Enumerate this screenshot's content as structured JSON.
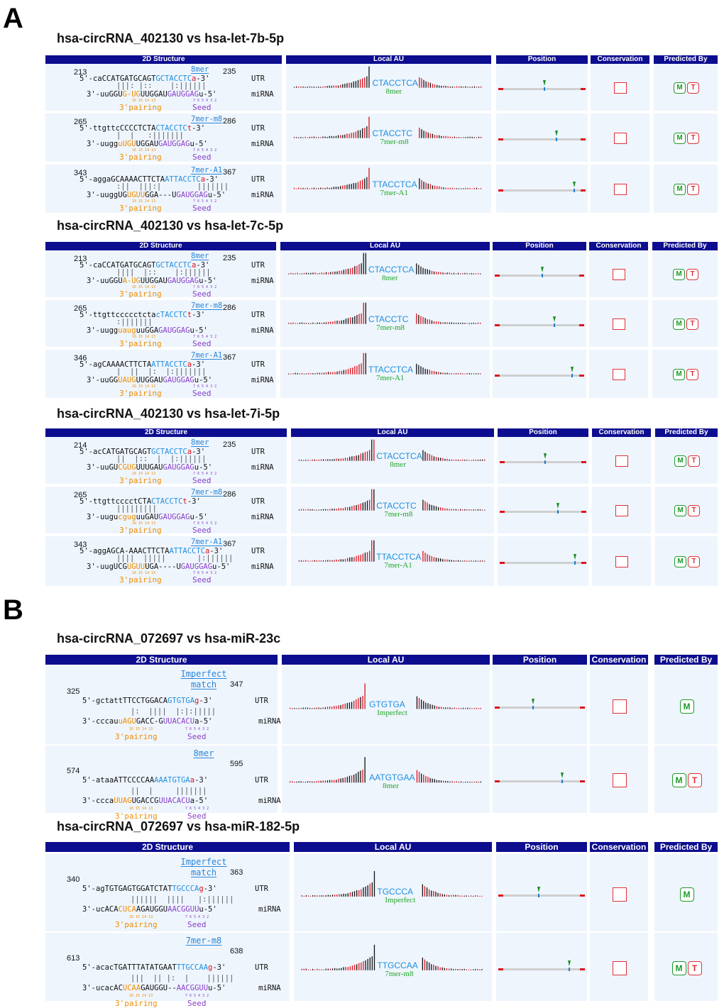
{
  "panels": [
    {
      "letter": "A",
      "blocks": [
        {
          "title": "hsa-circRNA_402130 vs hsa-let-7b-5p",
          "headers": [
            "2D Structure",
            "Local AU",
            "Position",
            "Conservation",
            "Predicted By"
          ],
          "rows": [
            {
              "start": "213",
              "end": "235",
              "site_type": "8mer",
              "utr": "5'-caCCATGATGCAGTGCTACCTCa-3'",
              "pairs": "|||: |::    |:||||||",
              "mirna": "3'-uuGGUG-UGUUGGAUGAUGGAGu-5'",
              "utr_label": "UTR",
              "mirna_label": "miRNA",
              "three_prime_label": "3'pairing",
              "seed_label": "Seed",
              "pos_digits": "16 15 14 13",
              "seed_digits": "7 6 5 4 3 2",
              "au_site": "CTACCTCA",
              "au_type": "8mer",
              "position_frac": 0.52,
              "predicted": [
                "M",
                "T"
              ]
            },
            {
              "start": "265",
              "end": "286",
              "site_type": "7mer-m8",
              "utr": "5'-ttgttcCCCCTCTACTACCTCt-3'",
              "pairs": "|  |   :|||||||",
              "mirna": "3'-uugguUGUUGGAUGAUGGAGu-5'",
              "utr_label": "UTR",
              "mirna_label": "miRNA",
              "three_prime_label": "3'pairing",
              "seed_label": "Seed",
              "pos_digits": "16 15 14 13",
              "seed_digits": "7 6 5 4 3 2",
              "au_site": "CTACCTC",
              "au_type": "7mer-m8",
              "position_frac": 0.66,
              "predicted": [
                "M",
                "T"
              ]
            },
            {
              "start": "343",
              "end": "367",
              "site_type": "7mer-A1",
              "utr": "5'-aggaGCAAAACTTCTAATTACCTCa-3'",
              "pairs": ":||  |||:|        |||||||",
              "mirna": "3'-uuggUGUGUUGGA---UGAUGGAGu-5'",
              "utr_label": "UTR",
              "mirna_label": "miRNA",
              "three_prime_label": "3'pairing",
              "seed_label": "Seed",
              "pos_digits": "16 15 14 13",
              "seed_digits": "7 6 5 4 3 2",
              "au_site": "TTACCTCA",
              "au_type": "7mer-A1",
              "position_frac": 0.86,
              "predicted": [
                "M",
                "T"
              ]
            }
          ]
        },
        {
          "title": "hsa-circRNA_402130 vs hsa-let-7c-5p",
          "headers": [
            "2D Structure",
            "Local AU",
            "Position",
            "Conservation",
            "Predicted By"
          ],
          "rows": [
            {
              "start": "213",
              "end": "235",
              "site_type": "8mer",
              "utr": "5'-caCCATGATGCAGTGCTACCTCa-3'",
              "pairs": "||||  |::    |:||||||",
              "mirna": "3'-uuGGUA-UGUUGGAUGAUGGAGu-5'",
              "utr_label": "UTR",
              "mirna_label": "miRNA",
              "three_prime_label": "3'pairing",
              "seed_label": "Seed",
              "pos_digits": "16 15 14 13",
              "seed_digits": "7 6 5 4 3 2",
              "au_site": "CTACCTCA",
              "au_type": "8mer",
              "position_frac": 0.52,
              "predicted": [
                "M",
                "T"
              ]
            },
            {
              "start": "265",
              "end": "286",
              "site_type": "7mer-m8",
              "utr": "5'-ttgttccccctctacTACCTCt-3'",
              "pairs": ":|||||||",
              "mirna": "3'-uugguauguuGGAGAUGGAGu-5'",
              "utr_label": "UTR",
              "mirna_label": "miRNA",
              "three_prime_label": "3'pairing",
              "seed_label": "Seed",
              "pos_digits": "16 15 14 13",
              "seed_digits": "7 6 5 4 3 2",
              "au_site": "CTACCTC",
              "au_type": "7mer-m8",
              "position_frac": 0.66,
              "predicted": [
                "M",
                "T"
              ]
            },
            {
              "start": "346",
              "end": "367",
              "site_type": "7mer-A1",
              "utr": "5'-agCAAAACTTCTAATTACCTCa-3'",
              "pairs": "|  ||  |:  |:|||||||",
              "mirna": "3'-uuGGUAUGUUGGAUGAUGGAGu-5'",
              "utr_label": "UTR",
              "mirna_label": "miRNA",
              "three_prime_label": "3'pairing",
              "seed_label": "Seed",
              "pos_digits": "16 15 14 13",
              "seed_digits": "7 6 5 4 3 2",
              "au_site": "TTACCTCA",
              "au_type": "7mer-A1",
              "position_frac": 0.86,
              "predicted": [
                "M",
                "T"
              ]
            }
          ]
        },
        {
          "title": "hsa-circRNA_402130 vs hsa-let-7i-5p",
          "headers": [
            "2D Structure",
            "Local AU",
            "Position",
            "Conservation",
            "Predicted By"
          ],
          "rows": [
            {
              "start": "214",
              "end": "235",
              "site_type": "8mer",
              "utr": "5'-acCATGATGCAGTGCTACCTCa-3'",
              "pairs": "||  |::  |  |:||||||",
              "mirna": "3'-uuGUCGUGUUUGAUGAUGGAGu-5'",
              "utr_label": "UTR",
              "mirna_label": "miRNA",
              "three_prime_label": "3'pairing",
              "seed_label": "Seed",
              "pos_digits": "16 15 14 13",
              "seed_digits": "7 6 5 4 3 2",
              "au_site": "CTACCTCA",
              "au_type": "8mer",
              "position_frac": 0.52,
              "predicted": [
                "M",
                "T"
              ]
            },
            {
              "start": "265",
              "end": "286",
              "site_type": "7mer-m8",
              "utr": "5'-ttgttcccctCTACTACCTCt-3'",
              "pairs": "|||||||||",
              "mirna": "3'-uugucguguuGAUGAUGGAGu-5'",
              "utr_label": "UTR",
              "mirna_label": "miRNA",
              "three_prime_label": "3'pairing",
              "seed_label": "Seed",
              "pos_digits": "16 15 14 13",
              "seed_digits": "7 6 5 4 3 2",
              "au_site": "CTACCTC",
              "au_type": "7mer-m8",
              "position_frac": 0.66,
              "predicted": [
                "M",
                "T"
              ]
            },
            {
              "start": "343",
              "end": "367",
              "site_type": "7mer-A1",
              "utr": "5'-aggAGCA-AAACTTCTAATTACCTCa-3'",
              "pairs": "||||  |||||       |:||||||",
              "mirna": "3'-uugUCGUGUUUGA----UGAUGGAGu-5'",
              "utr_label": "UTR",
              "mirna_label": "miRNA",
              "three_prime_label": "3'pairing",
              "seed_label": "Seed",
              "pos_digits": "16 15 14 13",
              "seed_digits": "7 6 5 4 3 2",
              "au_site": "TTACCTCA",
              "au_type": "7mer-A1",
              "position_frac": 0.86,
              "predicted": [
                "M",
                "T"
              ]
            }
          ]
        }
      ]
    },
    {
      "letter": "B",
      "blocks": [
        {
          "title": "hsa-circRNA_072697 vs hsa-miR-23c",
          "headers": [
            "2D Structure",
            "Local AU",
            "Position",
            "Conservation",
            "Predicted By"
          ],
          "rows": [
            {
              "start": "325",
              "end": "347",
              "site_type": "Imperfect match",
              "utr": "5'-gctattTTCCTGGACAGTGTGAg-3'",
              "pairs": "|:  ||||  |:|:|||||",
              "mirna": "3'-cccauuAGUGACC-GUUACACUa-5'",
              "utr_label": "UTR",
              "mirna_label": "miRNA",
              "three_prime_label": "3'pairing",
              "seed_label": "Seed",
              "pos_digits": "16 15 14 13",
              "seed_digits": "7 6 5 4 3 2",
              "au_site": "GTGTGA",
              "au_type": "Imperfect",
              "position_frac": 0.42,
              "predicted": [
                "M"
              ]
            },
            {
              "start": "574",
              "end": "595",
              "site_type": "8mer",
              "utr": "5'-ataaATTCCCCAAAAATGTGAa-3'",
              "pairs": "||  |     |||||||",
              "mirna": "3'-cccaUUAGUGACCGUUACACUa-5'",
              "utr_label": "UTR",
              "mirna_label": "miRNA",
              "three_prime_label": "3'pairing",
              "seed_label": "Seed",
              "pos_digits": "16 15 14 13",
              "seed_digits": "7 6 5 4 3 2",
              "au_site": "AATGTGAA",
              "au_type": "8mer",
              "position_frac": 0.74,
              "predicted": [
                "M",
                "T"
              ]
            }
          ]
        },
        {
          "title": "hsa-circRNA_072697 vs hsa-miR-182-5p",
          "headers": [
            "2D Structure",
            "Local AU",
            "Position",
            "Conservation",
            "Predicted By"
          ],
          "rows": [
            {
              "start": "340",
              "end": "363",
              "site_type": "Imperfect match",
              "utr": "5'-agTGTGAGTGGATCTATTGCCCAg-3'",
              "pairs": "||||||  ||||   |:||||||",
              "mirna": "3'-ucACACUCAAGAUGGUAACGGUUu-5'",
              "utr_label": "UTR",
              "mirna_label": "miRNA",
              "three_prime_label": "3'pairing",
              "seed_label": "Seed",
              "pos_digits": "16 15 14 13",
              "seed_digits": "7 6 5 4 3 2",
              "au_site": "TGCCCA",
              "au_type": "Imperfect",
              "position_frac": 0.46,
              "predicted": [
                "M"
              ]
            },
            {
              "start": "613",
              "end": "638",
              "site_type": "7mer-m8",
              "utr": "5'-acacTGATTTATATGAATTTGCCAAg-3'",
              "pairs": "|||  || |:  |    ||||||",
              "mirna": "3'-ucacACUCAAGAUGGU--AACGGUUu-5'",
              "utr_label": "UTR",
              "mirna_label": "miRNA",
              "three_prime_label": "3'pairing",
              "seed_label": "Seed",
              "pos_digits": "16 15 14 13",
              "seed_digits": "7 6 5 4 3 2",
              "au_site": "TTGCCAA",
              "au_type": "7mer-m8",
              "position_frac": 0.81,
              "predicted": [
                "M",
                "T"
              ]
            }
          ]
        }
      ]
    }
  ]
}
